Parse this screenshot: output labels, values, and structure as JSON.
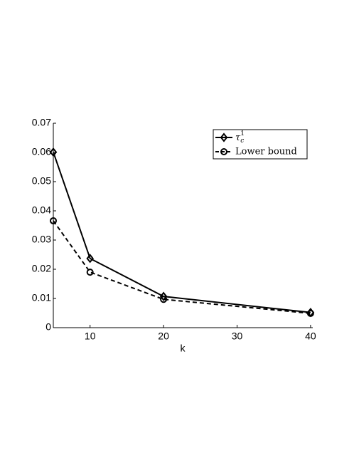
{
  "chart_data": {
    "type": "line",
    "xlabel": "k",
    "x": [
      5,
      10,
      20,
      40
    ],
    "series": [
      {
        "name": "τ_c^1",
        "color": "#000000",
        "dash": "solid",
        "marker": "diamond",
        "values": [
          0.0601,
          0.0237,
          0.0107,
          0.0052
        ]
      },
      {
        "name": "Lower bound",
        "color": "#000000",
        "dash": "dashed",
        "marker": "circle",
        "values": [
          0.0366,
          0.019,
          0.0097,
          0.0049
        ]
      }
    ],
    "xlim": [
      5,
      40.3
    ],
    "xticks": [
      10,
      20,
      30,
      40
    ],
    "ylim": [
      0,
      0.07
    ],
    "yticks": [
      0,
      0.01,
      0.02,
      0.03,
      0.04,
      0.05,
      0.06,
      0.07
    ],
    "legend": "upper right",
    "grid": false
  }
}
